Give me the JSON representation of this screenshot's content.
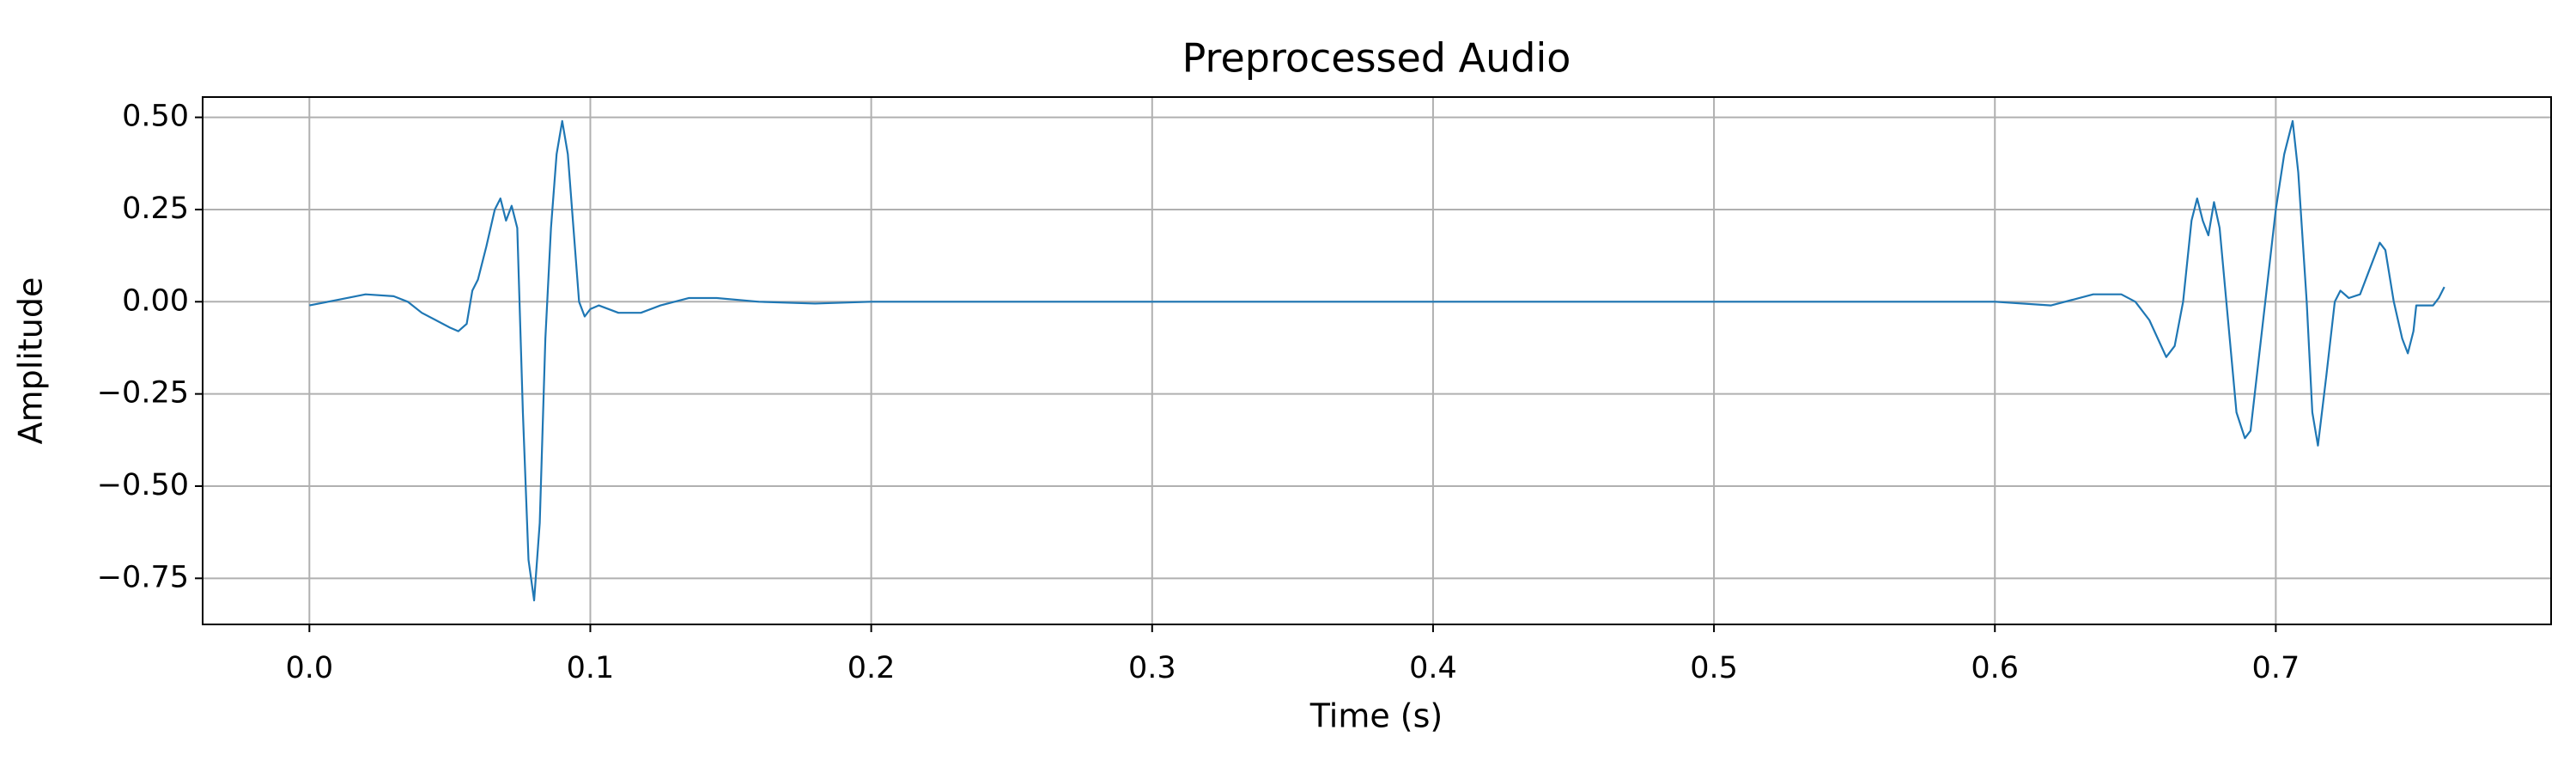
{
  "chart_data": {
    "type": "line",
    "title": "Preprocessed Audio",
    "x_label": "Time (s)",
    "y_label": "Amplitude",
    "x": [
      0.0,
      0.01,
      0.02,
      0.03,
      0.035,
      0.04,
      0.05,
      0.053,
      0.056,
      0.058,
      0.06,
      0.063,
      0.066,
      0.068,
      0.07,
      0.072,
      0.074,
      0.076,
      0.078,
      0.08,
      0.082,
      0.084,
      0.086,
      0.088,
      0.09,
      0.092,
      0.094,
      0.096,
      0.098,
      0.1,
      0.103,
      0.11,
      0.118,
      0.125,
      0.135,
      0.145,
      0.16,
      0.18,
      0.2,
      0.3,
      0.4,
      0.5,
      0.6,
      0.62,
      0.635,
      0.645,
      0.65,
      0.655,
      0.658,
      0.661,
      0.664,
      0.667,
      0.67,
      0.672,
      0.674,
      0.676,
      0.678,
      0.68,
      0.683,
      0.686,
      0.689,
      0.691,
      0.694,
      0.697,
      0.7,
      0.703,
      0.706,
      0.708,
      0.711,
      0.713,
      0.715,
      0.718,
      0.721,
      0.723,
      0.726,
      0.73,
      0.733,
      0.737,
      0.739,
      0.742,
      0.745,
      0.747,
      0.749,
      0.75,
      0.753,
      0.756,
      0.758,
      0.76
    ],
    "series": [
      {
        "color": "#1f77b4",
        "values": [
          -0.01,
          0.005,
          0.02,
          0.015,
          0.0,
          -0.03,
          -0.07,
          -0.08,
          -0.06,
          0.03,
          0.06,
          0.15,
          0.25,
          0.28,
          0.22,
          0.26,
          0.2,
          -0.3,
          -0.7,
          -0.81,
          -0.6,
          -0.1,
          0.2,
          0.4,
          0.49,
          0.4,
          0.2,
          0.0,
          -0.04,
          -0.02,
          -0.01,
          -0.03,
          -0.03,
          -0.01,
          0.01,
          0.01,
          0.0,
          -0.005,
          0.0,
          0.0,
          0.0,
          0.0,
          0.0,
          -0.01,
          0.02,
          0.02,
          0.0,
          -0.05,
          -0.1,
          -0.15,
          -0.12,
          0.0,
          0.22,
          0.28,
          0.22,
          0.18,
          0.27,
          0.2,
          -0.05,
          -0.3,
          -0.37,
          -0.35,
          -0.15,
          0.05,
          0.25,
          0.4,
          0.49,
          0.35,
          0.0,
          -0.3,
          -0.39,
          -0.2,
          0.0,
          0.03,
          0.01,
          0.02,
          0.08,
          0.16,
          0.14,
          0.0,
          -0.1,
          -0.14,
          -0.08,
          -0.01,
          -0.01,
          -0.01,
          0.01,
          0.04
        ]
      }
    ],
    "xlim": [
      -0.038,
      0.798
    ],
    "xticks": [
      {
        "value": 0,
        "label": "0.0"
      },
      0.1,
      0.2,
      0.3,
      0.4,
      0.5,
      0.6,
      0.7
    ],
    "ylim": [
      -0.875,
      0.555
    ],
    "yticks": [
      {
        "value": -0.75,
        "label": "−0.75"
      },
      {
        "value": -0.5,
        "label": "−0.50"
      },
      {
        "value": -0.25,
        "label": "−0.25"
      },
      {
        "value": 0,
        "label": "0.00"
      },
      {
        "value": 0.25,
        "label": "0.25"
      },
      {
        "value": 0.5,
        "label": "0.50"
      }
    ],
    "grid": true
  }
}
